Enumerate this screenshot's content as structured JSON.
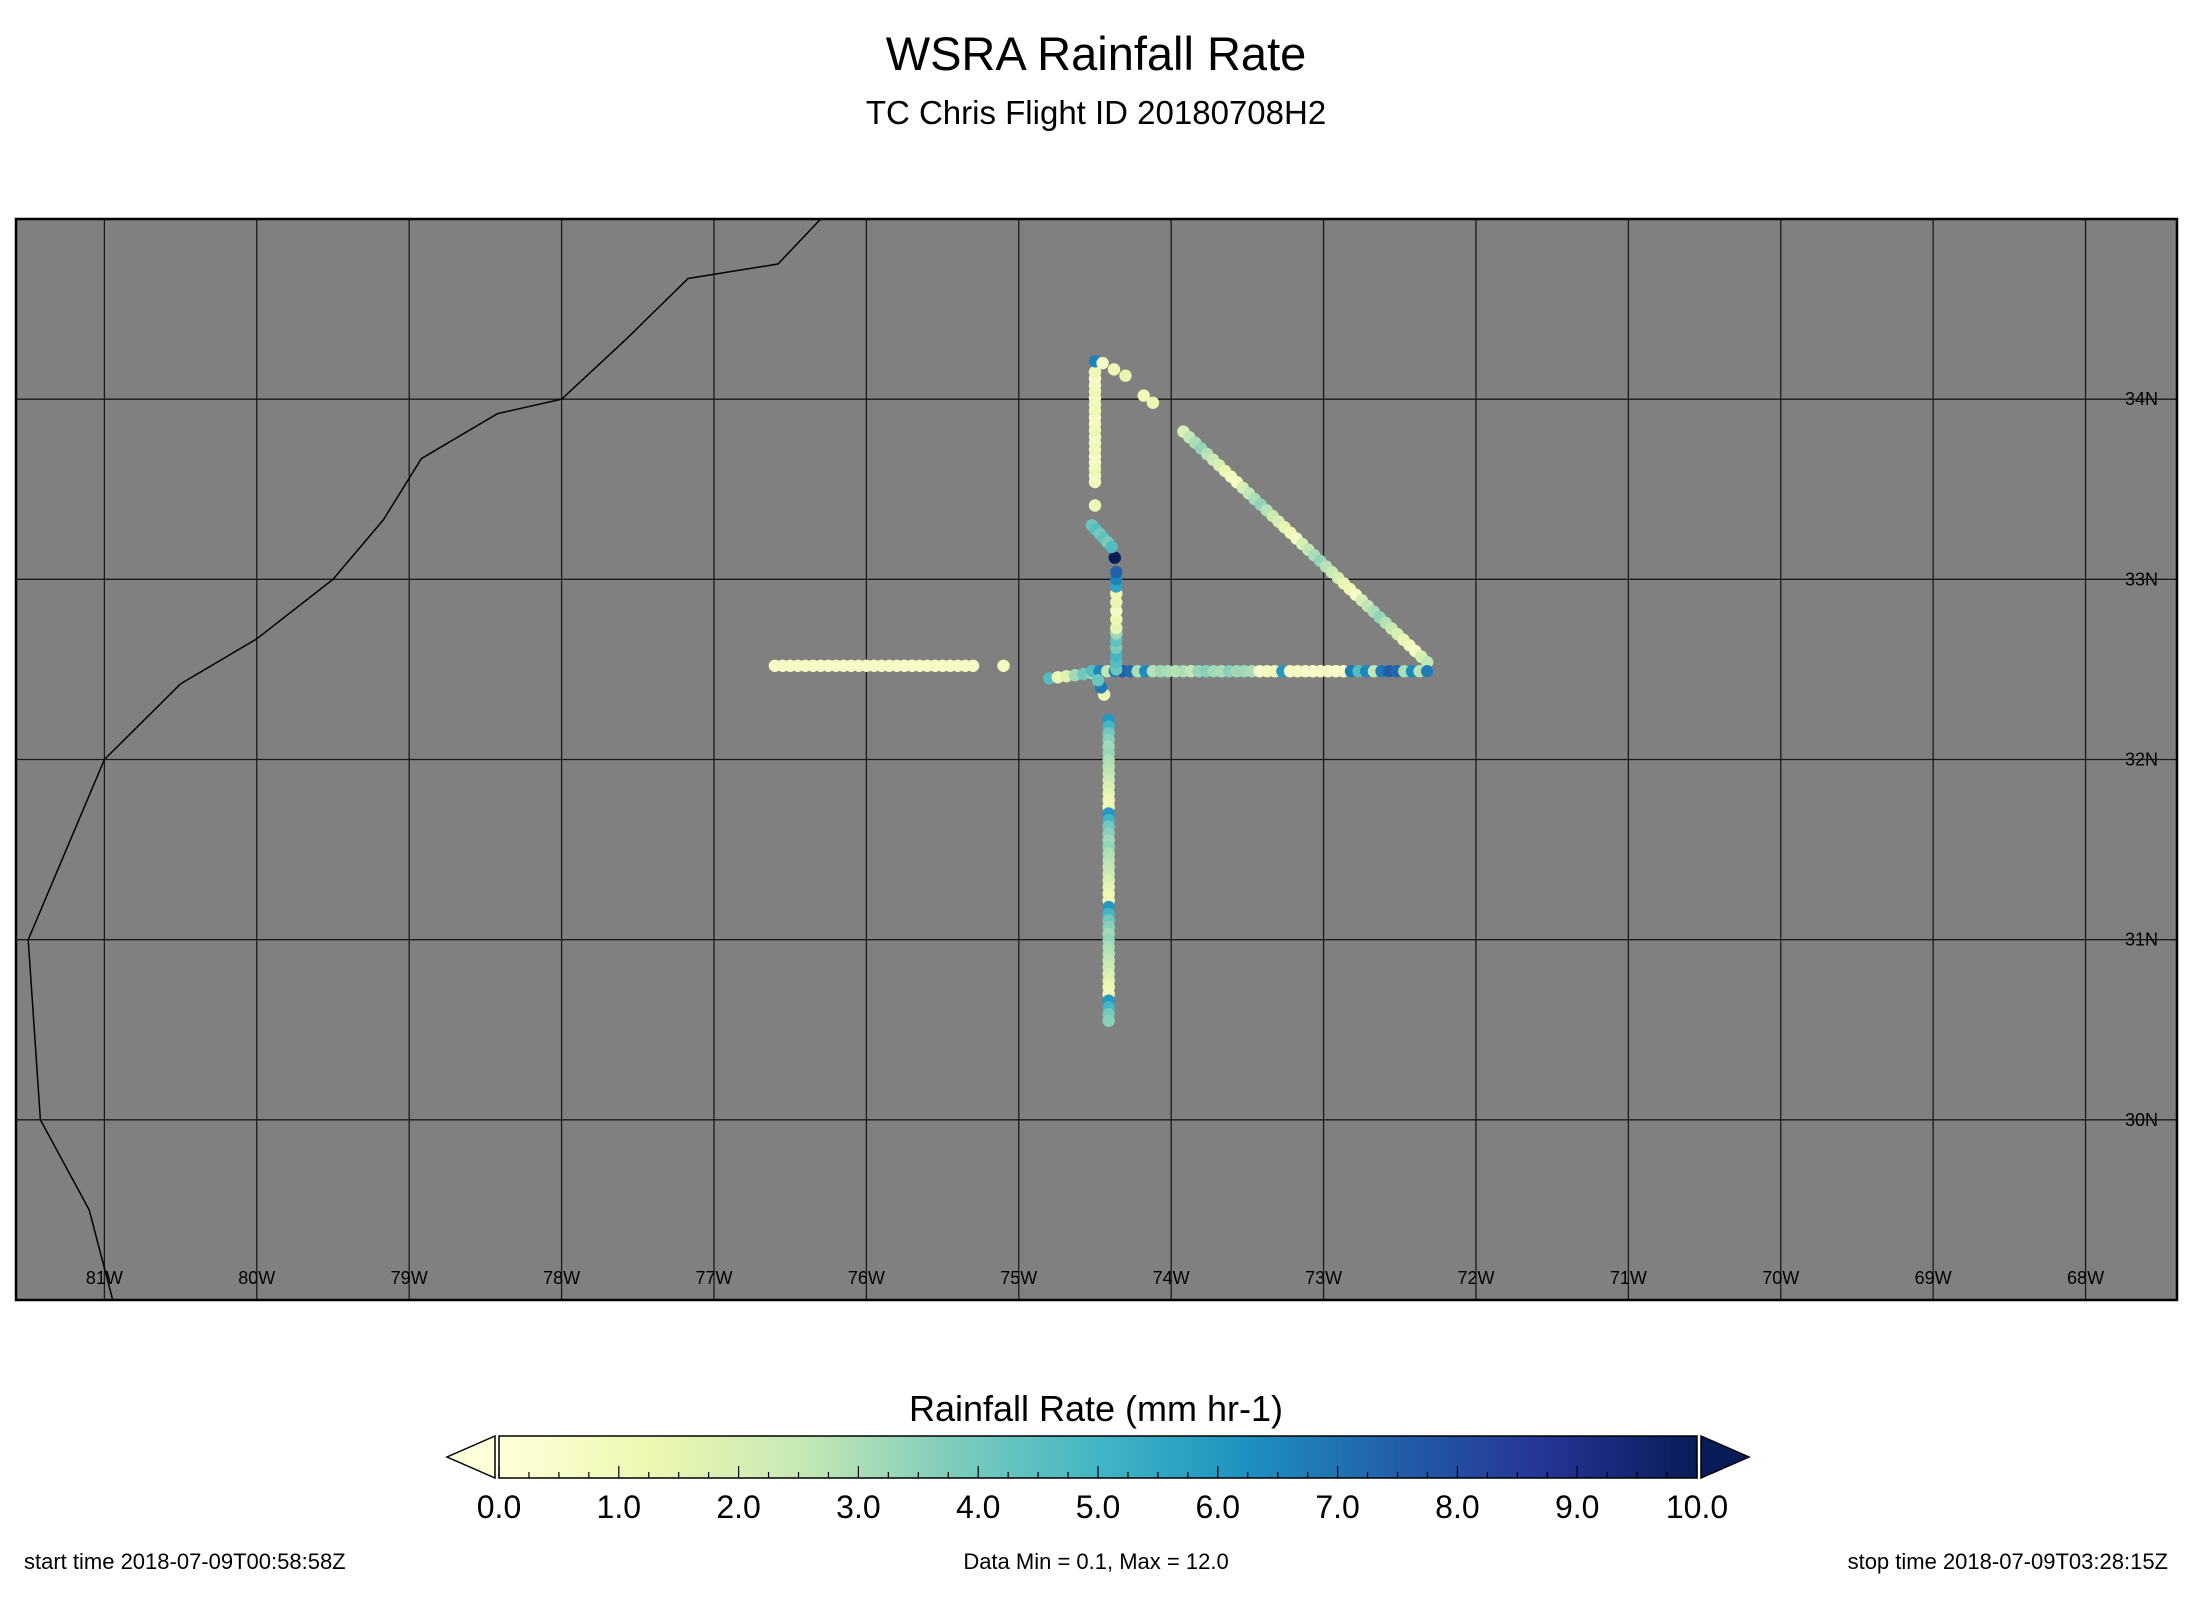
{
  "title": "WSRA Rainfall Rate",
  "subtitle": "TC Chris Flight ID 20180708H2",
  "map": {
    "lon_range": [
      -81.58,
      -67.4
    ],
    "lat_range": [
      29.0,
      35.0
    ],
    "lon_ticks": [
      -81,
      -80,
      -79,
      -78,
      -77,
      -76,
      -75,
      -74,
      -73,
      -72,
      -71,
      -70,
      -69,
      -68
    ],
    "lon_tick_labels": [
      "81W",
      "80W",
      "79W",
      "78W",
      "77W",
      "76W",
      "75W",
      "74W",
      "73W",
      "72W",
      "71W",
      "70W",
      "69W",
      "68W"
    ],
    "lat_ticks": [
      30,
      31,
      32,
      33,
      34
    ],
    "lat_tick_labels": [
      "30N",
      "31N",
      "32N",
      "33N",
      "34N"
    ],
    "background_color": "#808080",
    "grid": true,
    "coastline": [
      [
        -80.93,
        28.95
      ],
      [
        -81.1,
        29.5
      ],
      [
        -81.42,
        30.0
      ],
      [
        -81.5,
        31.0
      ],
      [
        -81.0,
        32.0
      ],
      [
        -80.5,
        32.42
      ],
      [
        -80.0,
        32.67
      ],
      [
        -79.5,
        33.0
      ],
      [
        -79.17,
        33.33
      ],
      [
        -78.92,
        33.67
      ],
      [
        -78.42,
        33.92
      ],
      [
        -78.0,
        34.0
      ],
      [
        -77.58,
        34.33
      ],
      [
        -77.17,
        34.67
      ],
      [
        -76.58,
        34.75
      ],
      [
        -76.3,
        35.0
      ]
    ]
  },
  "chart_data": {
    "type": "scatter",
    "title": "WSRA Rainfall Rate",
    "subtitle": "TC Chris Flight ID 20180708H2",
    "xlabel": "",
    "ylabel": "",
    "xlim": [
      -81.58,
      -67.4
    ],
    "ylim": [
      29.0,
      35.0
    ],
    "value_label": "Rainfall Rate (mm hr-1)",
    "color_range": [
      0.0,
      10.0
    ],
    "legend": "colorbar-bottom",
    "segments": [
      {
        "lon": [
          -76.6,
          -75.3
        ],
        "lat": [
          32.52,
          32.52
        ],
        "n": 27,
        "v": [
          0.6
        ]
      },
      {
        "lon": [
          -75.1,
          -75.1
        ],
        "lat": [
          32.52,
          32.52
        ],
        "n": 1,
        "v": [
          0.8
        ]
      },
      {
        "lon": [
          -74.8,
          -74.52
        ],
        "lat": [
          32.45,
          32.48
        ],
        "n": 6,
        "v": [
          4.6,
          1.2,
          1.8,
          3.2,
          4.0,
          2.8
        ]
      },
      {
        "lon": [
          -74.52,
          -72.32
        ],
        "lat": [
          32.49,
          32.49
        ],
        "n": 45,
        "v": [
          4.6,
          6.5,
          2.6,
          6.8,
          7.6,
          7.2,
          3.0,
          6.4,
          2.8,
          3.2,
          3.0,
          2.8,
          3.0,
          2.6,
          3.4,
          3.6,
          3.2,
          3.0,
          3.6,
          3.2,
          3.2,
          3.0,
          0.6,
          0.8,
          1.0,
          6.0,
          0.6,
          0.8,
          0.6,
          0.4,
          0.6,
          0.8,
          0.4,
          0.6,
          6.8
        ]
      },
      {
        "lon": [
          -74.41,
          -74.41
        ],
        "lat": [
          32.22,
          30.55
        ],
        "n": 46,
        "v": [
          6.0,
          5.0,
          4.0,
          3.6,
          3.2,
          3.4,
          3.0,
          2.8,
          2.6,
          2.4,
          2.0,
          1.6,
          1.2,
          1.0
        ]
      },
      {
        "lon": [
          -74.44,
          -74.48
        ],
        "lat": [
          32.36,
          32.44
        ],
        "n": 3,
        "v": [
          1.2,
          6.8,
          4.2
        ]
      },
      {
        "lon": [
          -74.36,
          -74.36
        ],
        "lat": [
          32.5,
          32.7
        ],
        "n": 6,
        "v": [
          4.2,
          4.6,
          5.0,
          3.8,
          4.4,
          3.2
        ]
      },
      {
        "lon": [
          -74.36,
          -74.36
        ],
        "lat": [
          32.73,
          32.92
        ],
        "n": 5,
        "v": [
          1.6,
          1.2,
          0.8,
          1.4,
          1.0
        ]
      },
      {
        "lon": [
          -74.36,
          -74.36
        ],
        "lat": [
          32.96,
          33.04
        ],
        "n": 3,
        "v": [
          5.6,
          6.6,
          7.4
        ]
      },
      {
        "lon": [
          -74.37,
          -74.37
        ],
        "lat": [
          33.12,
          33.12
        ],
        "n": 1,
        "v": [
          10.0
        ]
      },
      {
        "lon": [
          -74.52,
          -74.39
        ],
        "lat": [
          33.3,
          33.18
        ],
        "n": 6,
        "v": [
          4.2,
          4.6,
          4.0,
          4.4,
          3.8,
          4.6
        ]
      },
      {
        "lon": [
          -74.5,
          -74.5
        ],
        "lat": [
          33.41,
          33.41
        ],
        "n": 1,
        "v": [
          1.2
        ]
      },
      {
        "lon": [
          -74.5,
          -74.5
        ],
        "lat": [
          33.54,
          34.15
        ],
        "n": 18,
        "v": [
          1.0,
          0.6,
          1.2,
          0.8,
          0.6,
          1.0
        ]
      },
      {
        "lon": [
          -74.5,
          -74.5
        ],
        "lat": [
          34.21,
          34.21
        ],
        "n": 1,
        "v": [
          6.6
        ]
      },
      {
        "lon": [
          -74.45,
          -74.3
        ],
        "lat": [
          34.2,
          34.13
        ],
        "n": 3,
        "v": [
          0.6,
          1.0,
          1.4
        ]
      },
      {
        "lon": [
          -74.18,
          -74.12
        ],
        "lat": [
          34.02,
          33.98
        ],
        "n": 2,
        "v": [
          1.0,
          1.2
        ]
      },
      {
        "lon": [
          -73.92,
          -72.32
        ],
        "lat": [
          33.82,
          32.54
        ],
        "n": 42,
        "v": [
          2.0,
          2.6,
          3.0,
          3.4,
          2.8,
          2.4,
          2.0,
          1.4,
          1.0,
          0.6
        ]
      },
      {
        "lon": [
          -72.32,
          -72.32
        ],
        "lat": [
          32.49,
          32.49
        ],
        "n": 1,
        "v": [
          6.8
        ]
      }
    ]
  },
  "colorbar": {
    "title": "Rainfall Rate (mm hr-1)",
    "tick_labels": [
      "0.0",
      "1.0",
      "2.0",
      "3.0",
      "4.0",
      "5.0",
      "6.0",
      "7.0",
      "8.0",
      "9.0",
      "10.0"
    ],
    "stops": [
      "#ffffd9",
      "#edf8b1",
      "#c7e9b4",
      "#7fcdbb",
      "#41b6c4",
      "#1d91c0",
      "#225ea8",
      "#253494",
      "#081d58"
    ],
    "under_color": "#ffffd9",
    "over_color": "#081d58"
  },
  "footer": {
    "start": "start time 2018-07-09T00:58:58Z",
    "stats": "Data Min = 0.1, Max = 12.0",
    "stop": "stop time 2018-07-09T03:28:15Z"
  }
}
